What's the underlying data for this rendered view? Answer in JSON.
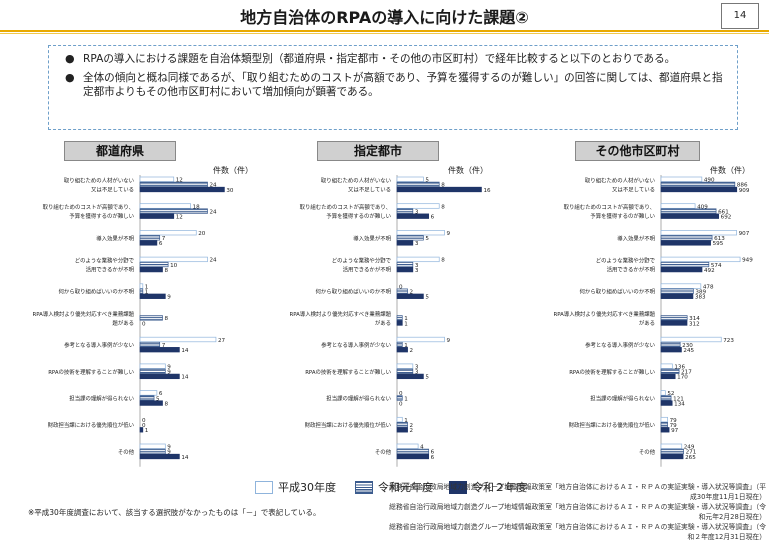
{
  "page": {
    "title": "地方自治体のRPAの導入に向けた課題②",
    "page_number": "14"
  },
  "summary": {
    "bullets": [
      "RPAの導入における課題を自治体類型別（都道府県・指定都市・その他の市区町村）で経年比較すると以下のとおりである。",
      "全体の傾向と概ね同様であるが、「取り組むためのコストが高額であり、予算を獲得するのが難しい」の回答に関しては、都道府県と指定都市よりもその他市区町村において増加傾向が顕著である。"
    ]
  },
  "legend": {
    "items": [
      "平成30年度",
      "令和元年度",
      "令和２年度"
    ]
  },
  "colors": {
    "accent": "#e8a900",
    "h30_border": "#8fb4dc",
    "r1_border": "#3c5c8e",
    "r2_fill": "#1f3568",
    "box_border": "#6e9fc9"
  },
  "footnote": "※平成30年度調査において、該当する選択肢がなかったものは「－」で表記している。",
  "source_lines": [
    "総務省自治行政局地域力創造グループ地域情報政策室「地方自治体におけるＡＩ・ＲＰＡの実証実験・導入状況等調査」（平成30年度11月1日現在）",
    "総務省自治行政局地域力創造グループ地域情報政策室「地方自治体におけるＡＩ・ＲＰＡの実証実験・導入状況等調査」（令和元年2月28日現在）",
    "総務省自治行政局地域力創造グループ地域情報政策室「地方自治体におけるＡＩ・ＲＰＡの実証実験・導入状況等調査」（令和２年度12月31日現在）"
  ],
  "chart_data": [
    {
      "type": "bar",
      "title": "都道府県",
      "unit_label": "件数（件）",
      "series_names": [
        "平成30年度",
        "令和元年度",
        "令和２年度"
      ],
      "categories": [
        [
          "取り組むための人材がいない",
          "又は不足している"
        ],
        [
          "取り組むためのコストが高額であり、",
          "予算を獲得するのが難しい"
        ],
        [
          "導入効果が不明"
        ],
        [
          "どのような業務や分野で",
          "活用できるかが不明"
        ],
        [
          "何から取り組めばいいのか不明"
        ],
        [
          "RPA導入検討より優先対応すべき業務課題",
          "題がある"
        ],
        [
          "参考となる導入事例が少ない"
        ],
        [
          "RPAの技術を理解することが難しい"
        ],
        [
          "担当課の理解が得られない"
        ],
        [
          "財政担当課における優先順位が低い"
        ],
        [
          "その他"
        ]
      ],
      "values": [
        [
          12,
          24,
          30
        ],
        [
          18,
          24,
          12
        ],
        [
          20,
          7,
          6
        ],
        [
          24,
          10,
          8
        ],
        [
          1,
          1,
          9
        ],
        [
          null,
          8,
          0
        ],
        [
          27,
          7,
          14
        ],
        [
          9,
          9,
          14
        ],
        [
          6,
          5,
          8
        ],
        [
          0,
          0,
          1
        ],
        [
          9,
          9,
          14
        ]
      ],
      "value_labels": [
        [
          "12",
          "24",
          "30"
        ],
        [
          "18",
          "24",
          "12"
        ],
        [
          "20",
          "7",
          "6"
        ],
        [
          "24",
          "10",
          "8"
        ],
        [
          "1",
          "1",
          "9"
        ],
        [
          "",
          "8",
          "0"
        ],
        [
          "27",
          "7",
          "14"
        ],
        [
          "9",
          "9",
          "14"
        ],
        [
          "6",
          "5",
          "8"
        ],
        [
          "0",
          "0",
          "1"
        ],
        [
          "9",
          "9",
          "14"
        ]
      ],
      "xmax": 32
    },
    {
      "type": "bar",
      "title": "指定都市",
      "unit_label": "件数（件）",
      "series_names": [
        "平成30年度",
        "令和元年度",
        "令和２年度"
      ],
      "categories": [
        [
          "取り組むための人材がいない",
          "又は不足している"
        ],
        [
          "取り組むためのコストが高額であり、",
          "予算を獲得するのが難しい"
        ],
        [
          "導入効果が不明"
        ],
        [
          "どのような業務や分野で",
          "活用できるかが不明"
        ],
        [
          "何から取り組めばいいのか不明"
        ],
        [
          "RPA導入検討より優先対応すべき業務課題",
          "がある"
        ],
        [
          "参考となる導入事例が少ない"
        ],
        [
          "RPAの技術を理解することが難しい"
        ],
        [
          "担当課の理解が得られない"
        ],
        [
          "財政担当課における優先順位が低い"
        ],
        [
          "その他"
        ]
      ],
      "values": [
        [
          5,
          8,
          16
        ],
        [
          8,
          3,
          6
        ],
        [
          9,
          5,
          3
        ],
        [
          8,
          3,
          3
        ],
        [
          0,
          2,
          5
        ],
        [
          null,
          1,
          1
        ],
        [
          9,
          1,
          2
        ],
        [
          3,
          3,
          5
        ],
        [
          0,
          1,
          0
        ],
        [
          1,
          2,
          2
        ],
        [
          4,
          6,
          6
        ]
      ],
      "value_labels": [
        [
          "5",
          "8",
          "16"
        ],
        [
          "8",
          "3",
          "6"
        ],
        [
          "9",
          "5",
          "3"
        ],
        [
          "8",
          "3",
          "3"
        ],
        [
          "0",
          "2",
          "5"
        ],
        [
          "",
          "1",
          "1"
        ],
        [
          "9",
          "1",
          "2"
        ],
        [
          "3",
          "3",
          "5"
        ],
        [
          "0",
          "1",
          "0"
        ],
        [
          "1",
          "2",
          "2"
        ],
        [
          "4",
          "6",
          "6"
        ]
      ],
      "xmax": 18
    },
    {
      "type": "bar",
      "title": "その他市区町村",
      "unit_label": "件数（件）",
      "series_names": [
        "平成30年度",
        "令和元年度",
        "令和２年度"
      ],
      "categories": [
        [
          "取り組むための人材がいない",
          "又は不足している"
        ],
        [
          "取り組むためのコストが高額であり、",
          "予算を獲得するのが難しい"
        ],
        [
          "導入効果が不明"
        ],
        [
          "どのような業務や分野で",
          "活用できるかが不明"
        ],
        [
          "何から取り組めばいいのか不明"
        ],
        [
          "RPA導入検討より優先対応すべき業務課題",
          "がある"
        ],
        [
          "参考となる導入事例が少ない"
        ],
        [
          "RPAの技術を理解することが難しい"
        ],
        [
          "担当課の理解が得られない"
        ],
        [
          "財政担当課における優先順位が低い"
        ],
        [
          "その他"
        ]
      ],
      "values": [
        [
          490,
          886,
          909
        ],
        [
          409,
          661,
          692
        ],
        [
          907,
          613,
          595
        ],
        [
          949,
          574,
          492
        ],
        [
          478,
          389,
          383
        ],
        [
          null,
          314,
          312
        ],
        [
          723,
          230,
          245
        ],
        [
          136,
          217,
          170
        ],
        [
          52,
          121,
          134
        ],
        [
          79,
          79,
          97
        ],
        [
          249,
          271,
          265
        ]
      ],
      "value_labels": [
        [
          "490",
          "886",
          "909"
        ],
        [
          "409",
          "661",
          "692"
        ],
        [
          "907",
          "613",
          "595"
        ],
        [
          "949",
          "574",
          "492"
        ],
        [
          "478",
          "389",
          "383"
        ],
        [
          "",
          "314",
          "312"
        ],
        [
          "723",
          "230",
          "245"
        ],
        [
          "136",
          "217",
          "170"
        ],
        [
          "52",
          "121",
          "134"
        ],
        [
          "79",
          "79",
          "97"
        ],
        [
          "249",
          "271",
          "265"
        ]
      ],
      "xmax": 1020
    }
  ]
}
